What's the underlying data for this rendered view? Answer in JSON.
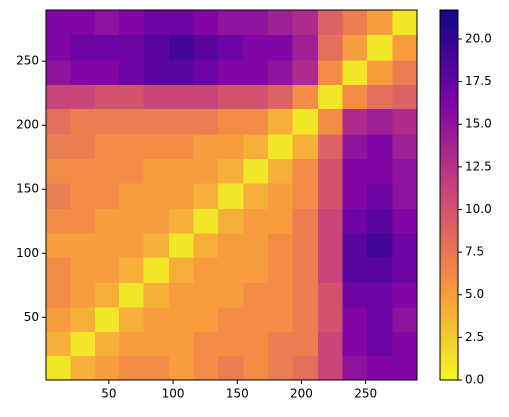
{
  "chart_data": {
    "type": "heatmap",
    "xbins": [
      1,
      20,
      39,
      58,
      77,
      97,
      116,
      135,
      155,
      174,
      193,
      213,
      232,
      251,
      271,
      290
    ],
    "ybins": [
      1,
      20,
      39,
      58,
      77,
      97,
      116,
      135,
      155,
      174,
      193,
      213,
      232,
      251,
      271,
      290
    ],
    "values": [
      [
        1,
        4,
        5,
        6,
        6,
        5,
        6,
        7,
        6,
        7,
        8,
        11,
        15,
        16,
        16
      ],
      [
        4,
        1,
        4,
        5,
        5,
        5,
        6,
        6,
        6,
        7,
        7,
        11,
        16,
        17,
        16
      ],
      [
        5,
        4,
        1,
        4,
        5,
        5,
        5,
        6,
        6,
        6,
        7,
        10,
        16,
        17,
        15
      ],
      [
        6,
        5,
        4,
        1,
        4,
        5,
        5,
        5,
        6,
        6,
        7,
        10,
        17,
        17,
        16
      ],
      [
        6,
        5,
        5,
        4,
        1,
        4,
        5,
        5,
        5,
        6,
        7,
        11,
        18,
        18,
        17
      ],
      [
        5,
        5,
        5,
        5,
        4,
        1,
        4,
        5,
        5,
        6,
        7,
        11,
        18,
        19,
        17
      ],
      [
        6,
        6,
        5,
        5,
        5,
        4,
        1,
        4,
        5,
        5,
        7,
        11,
        17,
        18,
        16
      ],
      [
        7,
        6,
        6,
        5,
        5,
        5,
        4,
        1,
        4,
        5,
        6,
        10,
        16,
        17,
        15
      ],
      [
        6,
        6,
        6,
        6,
        5,
        5,
        5,
        4,
        1,
        4,
        6,
        10,
        16,
        16,
        15
      ],
      [
        7,
        7,
        6,
        6,
        6,
        6,
        5,
        5,
        4,
        1,
        4,
        9,
        15,
        16,
        14
      ],
      [
        8,
        7,
        7,
        7,
        7,
        7,
        7,
        6,
        6,
        4,
        1,
        6,
        13,
        14,
        13
      ],
      [
        11,
        11,
        10,
        10,
        11,
        11,
        11,
        10,
        10,
        9,
        6,
        1,
        6,
        8,
        9
      ],
      [
        15,
        16,
        16,
        17,
        18,
        18,
        17,
        16,
        16,
        15,
        13,
        6,
        1,
        5,
        7
      ],
      [
        16,
        17,
        17,
        17,
        18,
        19,
        18,
        17,
        16,
        16,
        14,
        8,
        5,
        1,
        5
      ],
      [
        16,
        16,
        15,
        16,
        17,
        17,
        16,
        15,
        15,
        14,
        13,
        9,
        7,
        5,
        1
      ]
    ],
    "xlim": [
      1,
      290
    ],
    "ylim": [
      1,
      290
    ],
    "xticks": [
      50,
      100,
      150,
      200,
      250
    ],
    "yticks": [
      50,
      100,
      150,
      200,
      250
    ],
    "clim": [
      0,
      21.7
    ],
    "cticks": [
      {
        "value": 0,
        "label": "0.0"
      },
      2.5,
      {
        "value": 5,
        "label": "5.0"
      },
      7.5,
      {
        "value": 10,
        "label": "10.0"
      },
      12.5,
      {
        "value": 15,
        "label": "15.0"
      },
      17.5,
      {
        "value": 20,
        "label": "20.0"
      }
    ],
    "colormap": [
      "#f0f921",
      "#f89540",
      "#cc4778",
      "#7e03a8",
      "#0d0887"
    ]
  }
}
